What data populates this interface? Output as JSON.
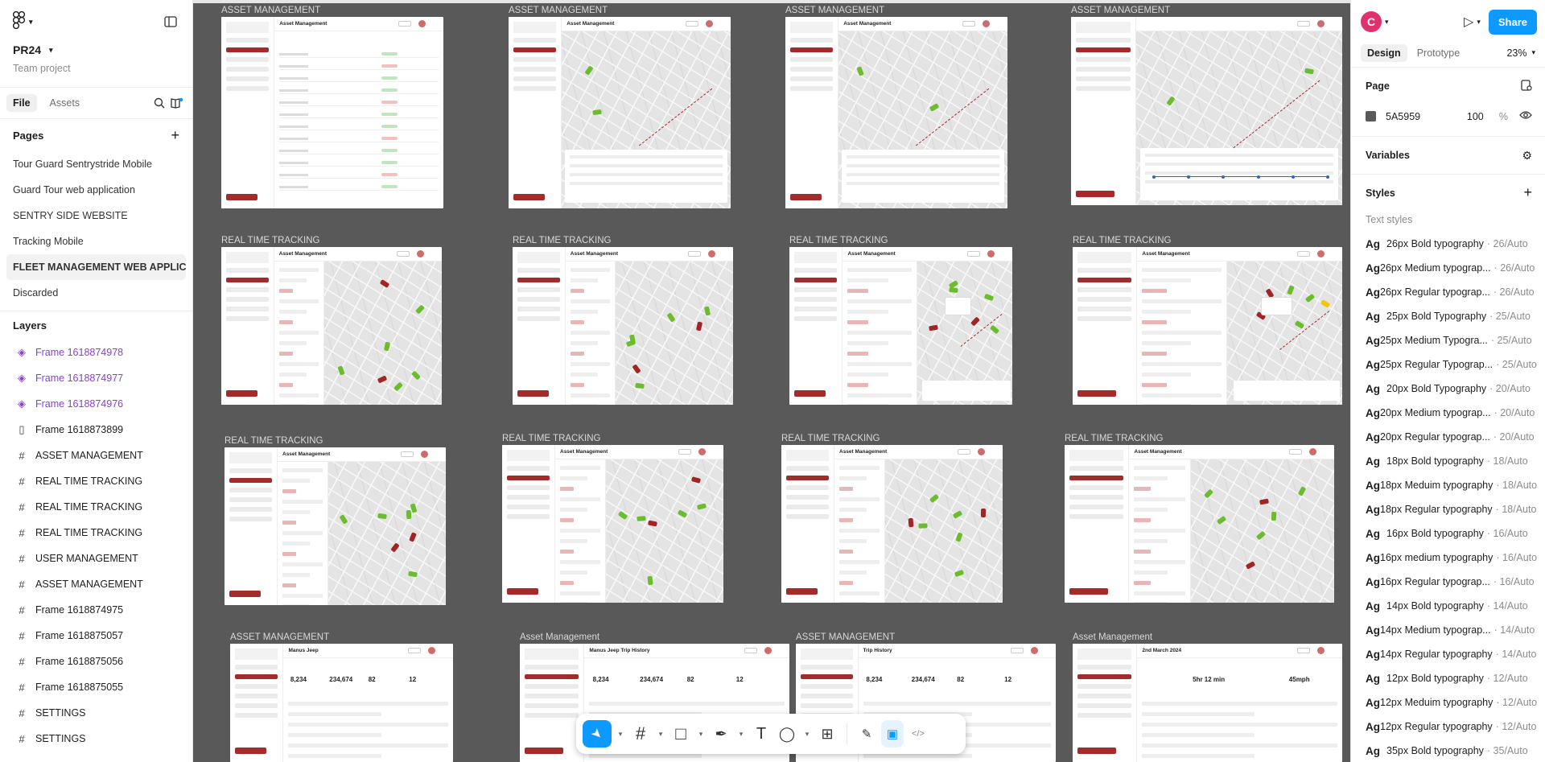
{
  "left_panel": {
    "project_name": "PR24",
    "project_sub": "Team project",
    "tabs": [
      {
        "label": "File"
      },
      {
        "label": "Assets"
      }
    ],
    "pages_title": "Pages",
    "pages": [
      {
        "label": "Tour Guard Sentrystride Mobile"
      },
      {
        "label": "Guard Tour web application"
      },
      {
        "label": "SENTRY SIDE WEBSITE"
      },
      {
        "label": "Tracking Mobile"
      },
      {
        "label": "FLEET MANAGEMENT WEB APPLICA..."
      },
      {
        "label": "Discarded"
      }
    ],
    "layers_title": "Layers",
    "layers": [
      {
        "label": "Frame 1618874978",
        "type": "component",
        "icon": "◈"
      },
      {
        "label": "Frame 1618874977",
        "type": "component",
        "icon": "◈"
      },
      {
        "label": "Frame 1618874976",
        "type": "component",
        "icon": "◈"
      },
      {
        "label": "Frame 1618873899",
        "type": "auto",
        "icon": "▯"
      },
      {
        "label": "ASSET MANAGEMENT",
        "type": "frame",
        "icon": "#"
      },
      {
        "label": "REAL TIME TRACKING",
        "type": "frame",
        "icon": "#"
      },
      {
        "label": "REAL TIME TRACKING",
        "type": "frame",
        "icon": "#"
      },
      {
        "label": "REAL TIME TRACKING",
        "type": "frame",
        "icon": "#"
      },
      {
        "label": "USER MANAGEMENT",
        "type": "frame",
        "icon": "#"
      },
      {
        "label": "ASSET MANAGEMENT",
        "type": "frame",
        "icon": "#"
      },
      {
        "label": "Frame 1618874975",
        "type": "frame",
        "icon": "#"
      },
      {
        "label": "Frame 1618875057",
        "type": "frame",
        "icon": "#"
      },
      {
        "label": "Frame 1618875056",
        "type": "frame",
        "icon": "#"
      },
      {
        "label": "Frame 1618875055",
        "type": "frame",
        "icon": "#"
      },
      {
        "label": "SETTINGS",
        "type": "frame",
        "icon": "#"
      },
      {
        "label": "SETTINGS",
        "type": "frame",
        "icon": "#"
      }
    ]
  },
  "canvas": {
    "frames": [
      {
        "label": "ASSET MANAGEMENT",
        "kind": "table",
        "title": "Asset Management"
      },
      {
        "label": "ASSET MANAGEMENT",
        "kind": "map-detail",
        "title": "Asset Management"
      },
      {
        "label": "ASSET MANAGEMENT",
        "kind": "map-detail",
        "title": "Asset Management"
      },
      {
        "label": "ASSET MANAGEMENT",
        "kind": "map-timeline",
        "title": ""
      },
      {
        "label": "REAL TIME TRACKING",
        "kind": "map-list",
        "title": "Asset Management"
      },
      {
        "label": "REAL TIME TRACKING",
        "kind": "map-list",
        "title": "Asset Management"
      },
      {
        "label": "REAL TIME TRACKING",
        "kind": "map-overview",
        "title": "Asset Management"
      },
      {
        "label": "REAL TIME TRACKING",
        "kind": "map-overview",
        "title": "Asset Management"
      },
      {
        "label": "REAL TIME TRACKING",
        "kind": "map-list",
        "title": "Asset Management"
      },
      {
        "label": "REAL TIME TRACKING",
        "kind": "map-list",
        "title": "Asset Management"
      },
      {
        "label": "REAL TIME TRACKING",
        "kind": "map-list",
        "title": "Asset Management"
      },
      {
        "label": "REAL TIME TRACKING",
        "kind": "map-list",
        "title": "Asset Management"
      },
      {
        "label": "ASSET MANAGEMENT",
        "kind": "stats",
        "title": "Manus Jeep",
        "kpis": [
          "8,234",
          "234,674",
          "82",
          "12"
        ]
      },
      {
        "label": "Asset Management",
        "kind": "stats",
        "title": "Manus Jeep Trip History",
        "kpis": [
          "8,234",
          "234,674",
          "82",
          "12"
        ]
      },
      {
        "label": "ASSET MANAGEMENT",
        "kind": "stats",
        "title": "Trip History",
        "kpis": [
          "8,234",
          "234,674",
          "82",
          "12"
        ]
      },
      {
        "label": "Asset Management",
        "kind": "stats",
        "title": "2nd March 2024",
        "kpis": [
          "",
          "5hr 12 min",
          "",
          "45mph"
        ]
      }
    ]
  },
  "toolbar": {
    "tools": [
      {
        "name": "move-tool",
        "icon": "➤"
      },
      {
        "name": "frame-tool",
        "icon": "#"
      },
      {
        "name": "shape-tool",
        "icon": "□"
      },
      {
        "name": "pen-tool",
        "icon": "✒"
      },
      {
        "name": "text-tool",
        "icon": "T"
      },
      {
        "name": "comment-tool",
        "icon": "◯"
      },
      {
        "name": "actions-tool",
        "icon": "⊞"
      }
    ],
    "right_tools": [
      {
        "name": "draw-mode",
        "icon": "✎"
      },
      {
        "name": "design-mode",
        "icon": "▣"
      },
      {
        "name": "dev-mode",
        "icon": "</>"
      }
    ]
  },
  "help_label": "?",
  "right_panel": {
    "user_initial": "C",
    "share_label": "Share",
    "modes": [
      {
        "label": "Design"
      },
      {
        "label": "Prototype"
      }
    ],
    "zoom": "23%",
    "page_section": "Page",
    "page_color_hex": "5A5959",
    "page_color_opacity": "100",
    "page_color_unit": "%",
    "page_color_value": "#5a5959",
    "variables_section": "Variables",
    "styles_section": "Styles",
    "text_styles_header": "Text styles",
    "text_styles": [
      {
        "name": "26px Bold typography",
        "meta": "· 26/Auto"
      },
      {
        "name": "26px Medium typograp...",
        "meta": "· 26/Auto"
      },
      {
        "name": "26px Regular typograp...",
        "meta": "· 26/Auto"
      },
      {
        "name": "25px Bold Typography",
        "meta": "· 25/Auto"
      },
      {
        "name": "25px Medium Typogra...",
        "meta": "· 25/Auto"
      },
      {
        "name": "25px Regular Typograp...",
        "meta": "· 25/Auto"
      },
      {
        "name": "20px Bold Typography",
        "meta": "· 20/Auto"
      },
      {
        "name": "20px Medium typograp...",
        "meta": "· 20/Auto"
      },
      {
        "name": "20px Regular typograp...",
        "meta": "· 20/Auto"
      },
      {
        "name": "18px Bold typography",
        "meta": "· 18/Auto"
      },
      {
        "name": "18px Meduim typography",
        "meta": "· 18/Auto"
      },
      {
        "name": "18px Regular typography",
        "meta": "· 18/Auto"
      },
      {
        "name": "16px Bold typography",
        "meta": "· 16/Auto"
      },
      {
        "name": "16px medium typography",
        "meta": "· 16/Auto"
      },
      {
        "name": "16px Regular typograp...",
        "meta": "· 16/Auto"
      },
      {
        "name": "14px Bold typography",
        "meta": "· 14/Auto"
      },
      {
        "name": "14px Medium typograp...",
        "meta": "· 14/Auto"
      },
      {
        "name": "14px Regular typography",
        "meta": "· 14/Auto"
      },
      {
        "name": "12px Bold typography",
        "meta": "· 12/Auto"
      },
      {
        "name": "12px Meduim typography",
        "meta": "· 12/Auto"
      },
      {
        "name": "12px Regular typography",
        "meta": "· 12/Auto"
      },
      {
        "name": "35px Bold typography",
        "meta": "· 35/Auto"
      }
    ]
  }
}
